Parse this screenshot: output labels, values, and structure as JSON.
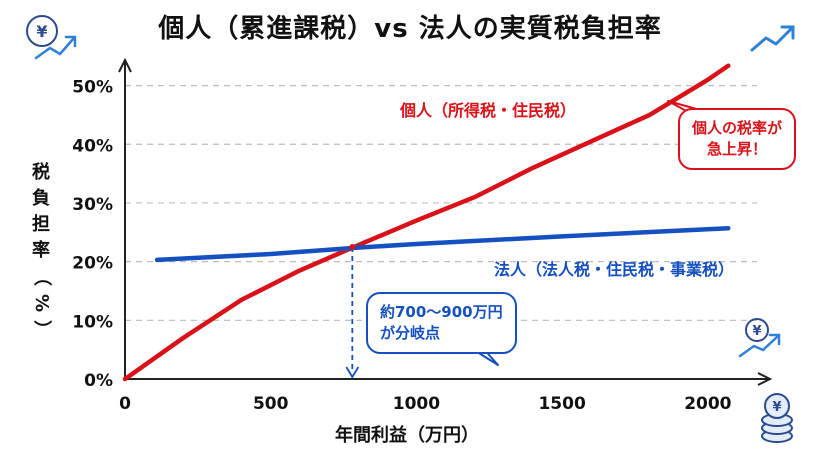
{
  "title": "個人（累進課税）vs 法人の実質税負担率",
  "annotations": {
    "individual_callout": [
      "個人の税率が",
      "急上昇！"
    ],
    "crossover_callout": [
      "約700～900万円",
      "が分岐点"
    ]
  },
  "decorations": {
    "icons": [
      "yen-trend-icon",
      "trend-arrow-icon",
      "yen-growth-icon",
      "coin-stack-icon"
    ],
    "coin_symbol": "¥"
  },
  "colors": {
    "individual": "#d9121a",
    "corporate": "#1550c0",
    "grid": "#bdbdbd",
    "axis": "#222222"
  },
  "chart_data": {
    "type": "line",
    "title": "個人（累進課税）vs 法人の実質税負担率",
    "xlabel": "年間利益（万円）",
    "ylabel": "税負担率（%）",
    "xlim": [
      0,
      2100
    ],
    "ylim": [
      0,
      0.53
    ],
    "x_ticks": [
      0,
      500,
      1000,
      1500,
      2000
    ],
    "x_tick_labels": [
      "0",
      "500",
      "1000",
      "1500",
      "2000"
    ],
    "y_ticks": [
      0,
      0.1,
      0.2,
      0.3,
      0.4,
      0.5
    ],
    "y_tick_labels": [
      "0%",
      "10%",
      "20%",
      "30%",
      "40%",
      "50%"
    ],
    "grid": "horizontal-dashed",
    "series": [
      {
        "name": "個人（所得税・住民税）",
        "x": [
          0,
          200,
          400,
          600,
          800,
          1000,
          1200,
          1400,
          1600,
          1800,
          2000,
          2070
        ],
        "y": [
          0,
          0.07,
          0.135,
          0.185,
          0.228,
          0.27,
          0.31,
          0.36,
          0.405,
          0.45,
          0.51,
          0.534
        ]
      },
      {
        "name": "法人（法人税・住民税・事業税）",
        "x": [
          110,
          500,
          800,
          1000,
          1500,
          2070
        ],
        "y": [
          0.203,
          0.213,
          0.224,
          0.23,
          0.243,
          0.257
        ]
      }
    ],
    "crossover_marker": {
      "x": 780,
      "y": 0.225
    }
  }
}
